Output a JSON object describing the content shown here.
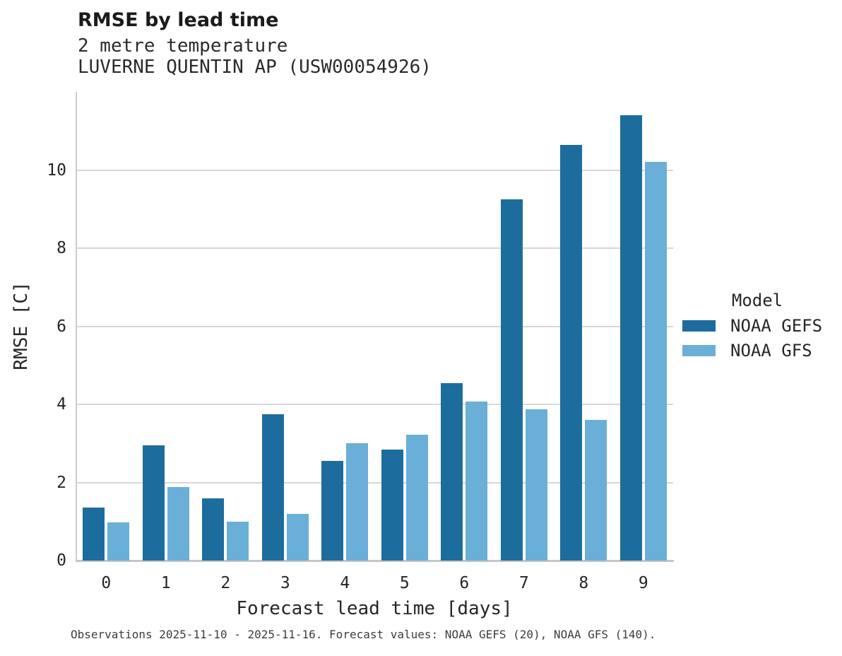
{
  "header": {
    "title": "RMSE by lead time",
    "subtitle_variable": "2 metre temperature",
    "subtitle_station": "LUVERNE QUENTIN AP (USW00054926)"
  },
  "chart_data": {
    "type": "bar",
    "title": "RMSE by lead time",
    "xlabel": "Forecast lead time [days]",
    "ylabel": "RMSE [C]",
    "categories": [
      "0",
      "1",
      "2",
      "3",
      "4",
      "5",
      "6",
      "7",
      "8",
      "9"
    ],
    "series": [
      {
        "name": "NOAA GEFS",
        "color": "#1C6D9E",
        "values": [
          1.35,
          2.95,
          1.6,
          3.75,
          2.55,
          2.85,
          4.55,
          9.25,
          10.65,
          11.4
        ]
      },
      {
        "name": "NOAA GFS",
        "color": "#69AFD7",
        "values": [
          0.98,
          1.88,
          1.0,
          1.2,
          3.0,
          3.22,
          4.07,
          3.88,
          3.6,
          10.2
        ]
      }
    ],
    "ylim": [
      0,
      12
    ],
    "yticks": [
      0,
      2,
      4,
      6,
      8,
      10
    ],
    "grid": true,
    "legend_title": "Model",
    "legend_position": "right"
  },
  "colors": {
    "bar_dark": "#1C6D9E",
    "bar_light": "#69AFD7",
    "gridline": "#D7D7D7",
    "axis_spine": "#C6C6C6"
  },
  "caption": "Observations 2025-11-10 - 2025-11-16. Forecast values: NOAA GEFS (20), NOAA GFS (140)."
}
